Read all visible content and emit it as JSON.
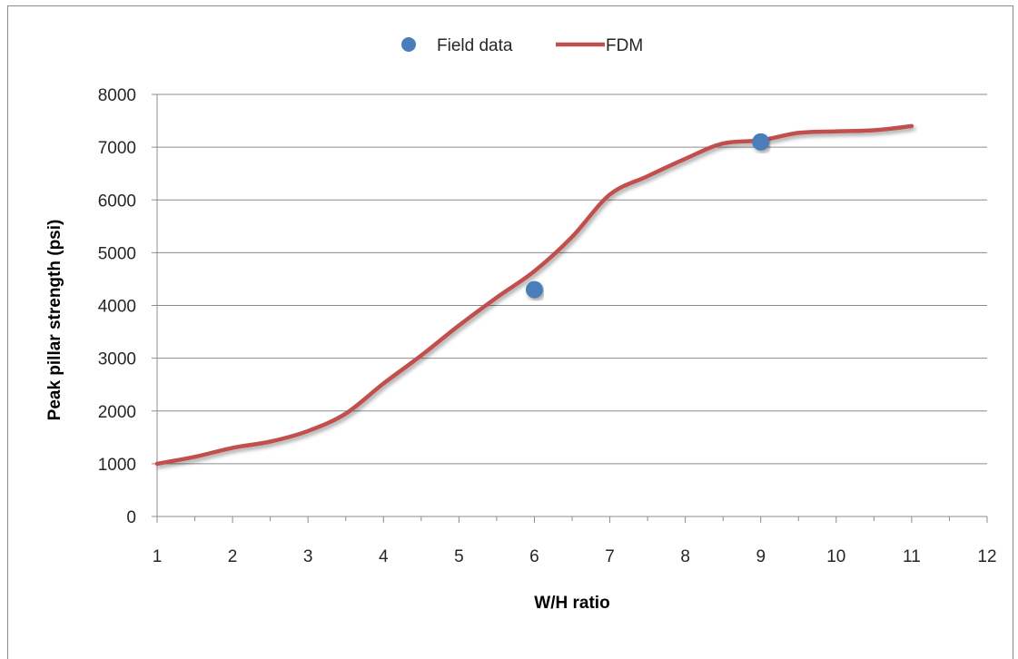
{
  "chart_data": {
    "type": "line",
    "xlabel": "W/H ratio",
    "ylabel": "Peak pillar strength (psi)",
    "xlim": [
      1,
      12
    ],
    "ylim": [
      0,
      8000
    ],
    "x_ticks": [
      1,
      2,
      3,
      4,
      5,
      6,
      7,
      8,
      9,
      10,
      11,
      12
    ],
    "y_ticks": [
      0,
      1000,
      2000,
      3000,
      4000,
      5000,
      6000,
      7000,
      8000
    ],
    "grid": "horizontal",
    "legend": {
      "position": "top-center",
      "entries": [
        "Field data",
        "FDM"
      ]
    },
    "series": [
      {
        "name": "Field data",
        "kind": "scatter",
        "color": "#4a7ebb",
        "points": [
          {
            "x": 6,
            "y": 4300
          },
          {
            "x": 9,
            "y": 7100
          }
        ]
      },
      {
        "name": "FDM",
        "kind": "line",
        "color": "#c0504d",
        "points": [
          {
            "x": 1,
            "y": 1000
          },
          {
            "x": 1.5,
            "y": 1130
          },
          {
            "x": 2,
            "y": 1300
          },
          {
            "x": 2.5,
            "y": 1420
          },
          {
            "x": 3,
            "y": 1620
          },
          {
            "x": 3.5,
            "y": 1950
          },
          {
            "x": 4,
            "y": 2520
          },
          {
            "x": 4.5,
            "y": 3050
          },
          {
            "x": 5,
            "y": 3620
          },
          {
            "x": 5.5,
            "y": 4150
          },
          {
            "x": 6,
            "y": 4650
          },
          {
            "x": 6.5,
            "y": 5300
          },
          {
            "x": 7,
            "y": 6100
          },
          {
            "x": 7.5,
            "y": 6450
          },
          {
            "x": 8,
            "y": 6780
          },
          {
            "x": 8.5,
            "y": 7070
          },
          {
            "x": 9,
            "y": 7130
          },
          {
            "x": 9.5,
            "y": 7270
          },
          {
            "x": 10,
            "y": 7300
          },
          {
            "x": 10.5,
            "y": 7320
          },
          {
            "x": 11,
            "y": 7400
          }
        ]
      }
    ]
  }
}
